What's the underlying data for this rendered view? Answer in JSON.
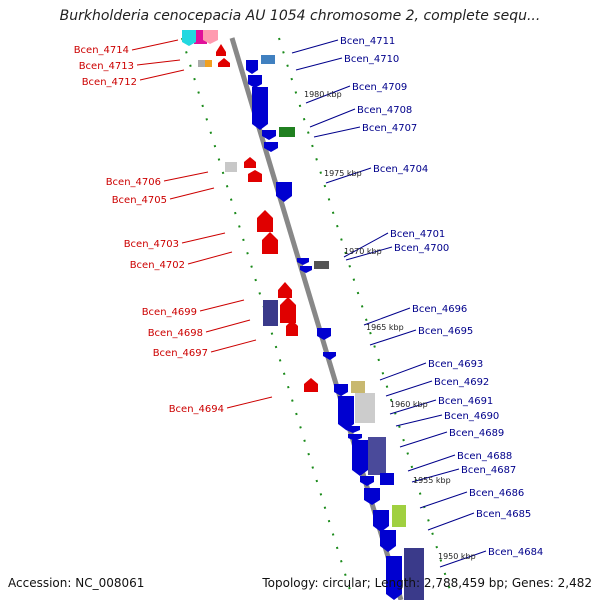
{
  "title": "Burkholderia cenocepacia AU 1054 chromosome 2, complete sequ...",
  "accession": "Accession: NC_008061",
  "summary": "Topology: circular; Length: 2,788,459 bp; Genes: 2,482",
  "colors": {
    "axis": "#888888",
    "dots": "#1a8a1a",
    "forward": "#e00000",
    "reverse": "#0000d0",
    "label_forward": "#cc0000",
    "label_reverse": "#00008b"
  },
  "scale_marks": [
    "1980 kbp",
    "1975 kbp",
    "1970 kbp",
    "1965 kbp",
    "1960 kbp",
    "1955 kbp",
    "1950 kbp"
  ],
  "left_labels": [
    "Bcen_4714",
    "Bcen_4713",
    "Bcen_4712",
    "Bcen_4706",
    "Bcen_4705",
    "Bcen_4703",
    "Bcen_4702",
    "Bcen_4699",
    "Bcen_4698",
    "Bcen_4697",
    "Bcen_4694"
  ],
  "right_labels": [
    "Bcen_4711",
    "Bcen_4710",
    "Bcen_4709",
    "Bcen_4708",
    "Bcen_4707",
    "Bcen_4704",
    "Bcen_4701",
    "Bcen_4700",
    "Bcen_4696",
    "Bcen_4695",
    "Bcen_4693",
    "Bcen_4692",
    "Bcen_4691",
    "Bcen_4690",
    "Bcen_4689",
    "Bcen_4688",
    "Bcen_4687",
    "Bcen_4686",
    "Bcen_4685",
    "Bcen_4684"
  ]
}
